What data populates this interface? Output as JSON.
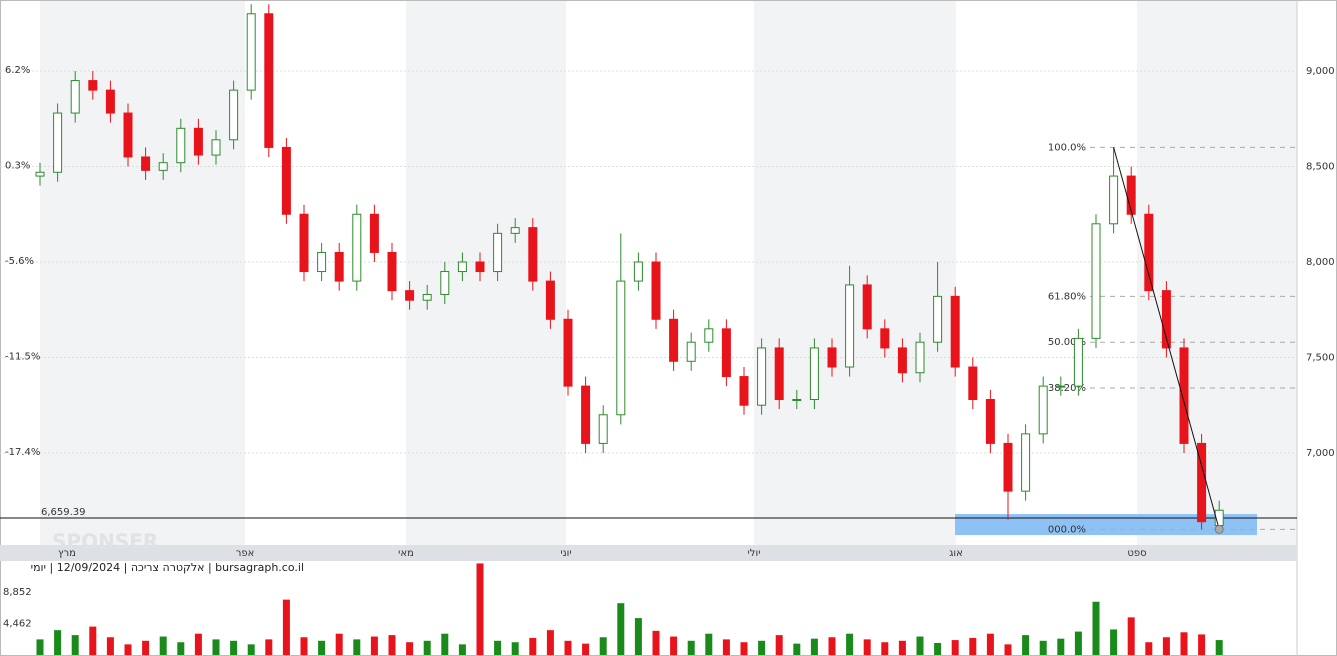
{
  "chart_data": {
    "type": "candlestick",
    "caption": "bursagraph.co.il | אלקטרה צריכה | 12/09/2024 | יומי",
    "watermark": "SPONSER",
    "months": [
      "מרץ",
      "אפר",
      "מאי",
      "יוני",
      "יולי",
      "אוג",
      "ספט"
    ],
    "open": [
      8450,
      8470,
      8780,
      8950,
      8900,
      8780,
      8550,
      8480,
      8520,
      8700,
      8560,
      8640,
      8900,
      9300,
      8600,
      8250,
      7950,
      8050,
      7900,
      8250,
      8050,
      7850,
      7800,
      7830,
      7950,
      8000,
      7950,
      8150,
      8180,
      7900,
      7700,
      7350,
      7050,
      7200,
      7900,
      8000,
      7700,
      7480,
      7580,
      7650,
      7400,
      7250,
      7550,
      7280,
      7280,
      7550,
      7450,
      7880,
      7650,
      7550,
      7420,
      7580,
      7820,
      7450,
      7280,
      7050,
      6800,
      7100,
      7350,
      7350,
      7600,
      8200,
      8450,
      8250,
      7850,
      7550,
      7050,
      6620
    ],
    "high": [
      8520,
      8830,
      9000,
      9000,
      8950,
      8830,
      8600,
      8570,
      8750,
      8750,
      8690,
      8950,
      9350,
      9350,
      8650,
      8300,
      8100,
      8100,
      8300,
      8300,
      8100,
      7900,
      7880,
      8000,
      8050,
      8050,
      8200,
      8230,
      8230,
      7950,
      7750,
      7400,
      7250,
      8150,
      8050,
      8050,
      7750,
      7630,
      7700,
      7700,
      7450,
      7600,
      7600,
      7330,
      7600,
      7600,
      7980,
      7930,
      7700,
      7600,
      7630,
      8000,
      7870,
      7500,
      7330,
      7100,
      7150,
      7400,
      7400,
      7650,
      8250,
      8600,
      8500,
      8300,
      7900,
      7600,
      7100,
      6750
    ],
    "low": [
      8400,
      8420,
      8730,
      8850,
      8730,
      8500,
      8430,
      8430,
      8470,
      8510,
      8510,
      8590,
      8850,
      8550,
      8200,
      7900,
      7900,
      7850,
      7850,
      8000,
      7800,
      7750,
      7750,
      7780,
      7900,
      7900,
      7900,
      8100,
      7850,
      7650,
      7300,
      7000,
      7000,
      7150,
      7850,
      7650,
      7430,
      7430,
      7530,
      7350,
      7200,
      7200,
      7230,
      7230,
      7230,
      7400,
      7400,
      7600,
      7500,
      7370,
      7370,
      7530,
      7400,
      7230,
      7000,
      6650,
      6750,
      7050,
      7300,
      7300,
      7550,
      8150,
      8200,
      7800,
      7500,
      7000,
      6600,
      6600
    ],
    "close": [
      8470,
      8780,
      8950,
      8900,
      8780,
      8550,
      8480,
      8520,
      8700,
      8560,
      8640,
      8900,
      9300,
      8600,
      8250,
      7950,
      8050,
      7900,
      8250,
      8050,
      7850,
      7800,
      7830,
      7950,
      8000,
      7950,
      8150,
      8180,
      7900,
      7700,
      7350,
      7050,
      7200,
      7900,
      8000,
      7700,
      7480,
      7580,
      7650,
      7400,
      7250,
      7550,
      7280,
      7280,
      7550,
      7450,
      7880,
      7650,
      7550,
      7420,
      7580,
      7820,
      7450,
      7280,
      7050,
      6800,
      7100,
      7350,
      7350,
      7600,
      8200,
      8450,
      8250,
      7850,
      7550,
      7050,
      6640,
      6700
    ],
    "volume": [
      2200,
      3500,
      2800,
      4000,
      2500,
      1500,
      2000,
      2600,
      1800,
      3000,
      2200,
      2000,
      1500,
      2200,
      7800,
      2500,
      2000,
      3000,
      2200,
      2600,
      2800,
      1800,
      2000,
      3000,
      1500,
      12900,
      2000,
      1800,
      2400,
      3500,
      2000,
      1600,
      2500,
      7300,
      5200,
      3400,
      2600,
      2000,
      3000,
      2200,
      1800,
      2000,
      2800,
      1600,
      2300,
      2500,
      3000,
      2200,
      1800,
      2000,
      2600,
      1700,
      2100,
      2400,
      3000,
      1500,
      2800,
      2000,
      2300,
      3300,
      7500,
      3600,
      5300,
      1800,
      2500,
      3200,
      2900,
      2100
    ],
    "up_color": "#2e8b2e",
    "down_color": "#e8141c",
    "ylim": [
      6518,
      9372
    ],
    "yticks": [
      {
        "value": 7000,
        "label": "7,000"
      },
      {
        "value": 7500,
        "label": "7,500"
      },
      {
        "value": 8000,
        "label": "8,000"
      },
      {
        "value": 8500,
        "label": "8,500"
      },
      {
        "value": 9000,
        "label": "9,000"
      }
    ],
    "y2lim": [
      -23.08,
      10.59
    ],
    "y2ticks": [
      {
        "value": -17.4,
        "label": "-17.4%"
      },
      {
        "value": -11.5,
        "label": "-11.5%"
      },
      {
        "value": -5.6,
        "label": "-5.6%"
      },
      {
        "value": 0.3,
        "label": "0.3%"
      },
      {
        "value": 6.2,
        "label": "6.2%"
      }
    ],
    "volume_ylim": [
      0,
      13100
    ],
    "volume_ticks": [
      {
        "value": 4462,
        "label": "4,462"
      },
      {
        "value": 8852,
        "label": "8,852"
      }
    ],
    "last_price": {
      "value": 6659.39,
      "label": "6,659.39"
    },
    "highlight_range": [
      6570,
      6680
    ],
    "fib_levels": [
      {
        "value": 8600,
        "label": "100.0%"
      },
      {
        "value": 7820,
        "label": "61.80%"
      },
      {
        "value": 7580,
        "label": "50.00%"
      },
      {
        "value": 7340,
        "label": "38.20%"
      },
      {
        "value": 6600,
        "label": "000.0%"
      }
    ],
    "grid": true
  }
}
